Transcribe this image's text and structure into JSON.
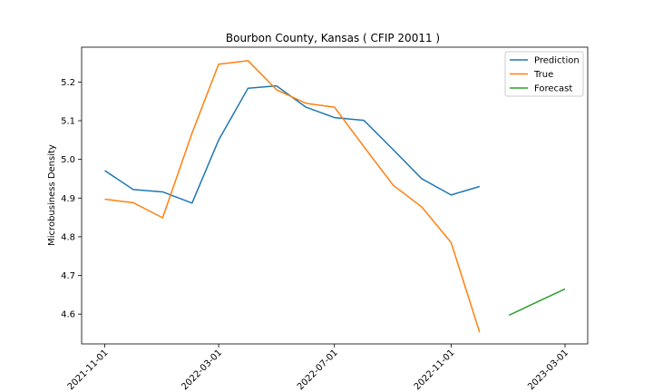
{
  "chart_data": {
    "type": "line",
    "title": "Bourbon County, Kansas ( CFIP 20011 )",
    "xlabel": "",
    "ylabel": "Microbusiness Density",
    "x_start": "2021-11-01",
    "x_ticks": [
      "2021-11-01",
      "2022-03-01",
      "2022-07-01",
      "2022-11-01",
      "2023-03-01"
    ],
    "y_ticks": [
      "4.6",
      "4.7",
      "4.8",
      "4.9",
      "5.0",
      "5.1",
      "5.2"
    ],
    "ylim": [
      4.523,
      5.29
    ],
    "legend_position": "top-right",
    "grid": false,
    "series": [
      {
        "name": "Prediction",
        "color": "#1f77b4",
        "x": [
          "2021-11-01",
          "2021-12-01",
          "2022-01-01",
          "2022-02-01",
          "2022-03-01",
          "2022-04-01",
          "2022-05-01",
          "2022-06-01",
          "2022-07-01",
          "2022-08-01",
          "2022-09-01",
          "2022-10-01",
          "2022-11-01",
          "2022-12-01"
        ],
        "values": [
          4.971,
          4.922,
          4.916,
          4.887,
          5.05,
          5.184,
          5.19,
          5.135,
          5.108,
          5.101,
          5.025,
          4.95,
          4.908,
          4.93
        ]
      },
      {
        "name": "True",
        "color": "#ff7f0e",
        "x": [
          "2021-11-01",
          "2021-12-01",
          "2022-01-01",
          "2022-02-01",
          "2022-03-01",
          "2022-04-01",
          "2022-05-01",
          "2022-06-01",
          "2022-07-01",
          "2022-08-01",
          "2022-09-01",
          "2022-10-01",
          "2022-11-01",
          "2022-12-01"
        ],
        "values": [
          4.897,
          4.888,
          4.849,
          5.068,
          5.246,
          5.255,
          5.18,
          5.145,
          5.135,
          5.033,
          4.933,
          4.877,
          4.785,
          4.553
        ]
      },
      {
        "name": "Forecast",
        "color": "#2ca02c",
        "x": [
          "2023-01-01",
          "2023-02-01",
          "2023-03-01"
        ],
        "values": [
          4.597,
          4.633,
          4.665
        ]
      }
    ]
  }
}
